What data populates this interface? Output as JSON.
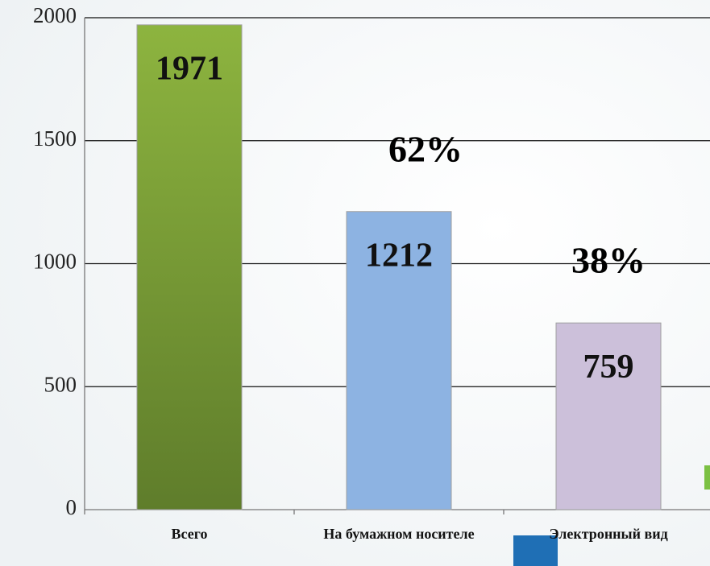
{
  "chart_data": {
    "type": "bar",
    "categories": [
      "Всего",
      "На бумажном носителе",
      "Электронный вид"
    ],
    "values": [
      1971,
      1212,
      759
    ],
    "colors": [
      "#7a9c36",
      "#8db3e2",
      "#ccc0da"
    ],
    "annotations": [
      "62%",
      "38%"
    ],
    "ylim": [
      0,
      2000
    ],
    "yticks": [
      0,
      500,
      1000,
      1500,
      2000
    ],
    "grid": true
  }
}
